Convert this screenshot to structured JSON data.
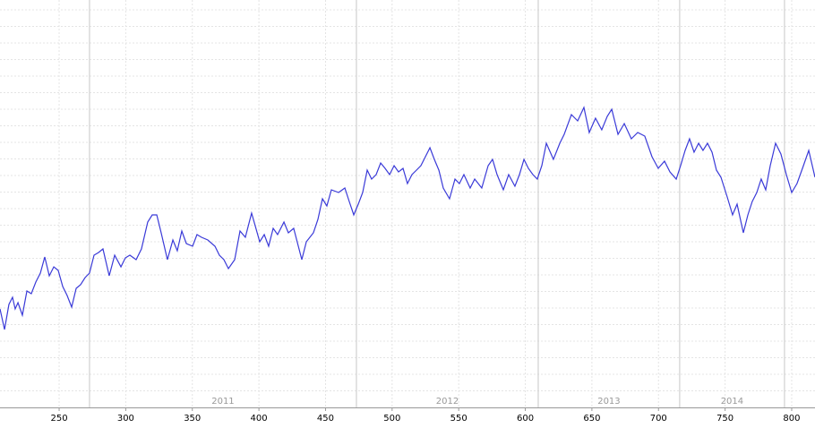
{
  "chart_data": {
    "type": "line",
    "x": [
      205.6,
      209.0,
      212.3,
      215.0,
      217.0,
      219.1,
      222.4,
      225.8,
      229.1,
      232.5,
      235.9,
      239.2,
      242.6,
      246.0,
      249.3,
      252.7,
      256.0,
      259.4,
      262.8,
      266.1,
      269.5,
      272.8,
      276.2,
      279.6,
      282.9,
      287.6,
      291.7,
      296.4,
      299.7,
      303.1,
      307.8,
      311.8,
      316.5,
      319.9,
      323.3,
      326.6,
      331.3,
      335.4,
      338.7,
      342.1,
      345.5,
      350.2,
      353.5,
      356.9,
      361.6,
      367.0,
      370.3,
      373.7,
      377.1,
      381.8,
      385.8,
      389.8,
      394.5,
      400.6,
      404.0,
      407.3,
      410.7,
      414.0,
      418.8,
      422.1,
      426.1,
      432.2,
      435.6,
      440.9,
      444.3,
      447.7,
      451.0,
      454.4,
      459.8,
      464.5,
      467.8,
      471.2,
      474.6,
      477.9,
      481.3,
      484.6,
      488.0,
      491.4,
      494.7,
      498.1,
      501.5,
      504.8,
      508.2,
      511.5,
      514.9,
      518.3,
      521.6,
      525.0,
      528.4,
      531.7,
      535.1,
      538.4,
      543.1,
      547.2,
      550.5,
      553.9,
      558.6,
      562.0,
      567.3,
      572.1,
      575.4,
      578.8,
      583.5,
      587.5,
      592.2,
      595.6,
      599.0,
      602.3,
      605.7,
      609.0,
      612.4,
      615.8,
      621.1,
      625.9,
      629.2,
      634.6,
      639.3,
      644.0,
      648.0,
      652.7,
      657.4,
      661.5,
      664.9,
      669.6,
      674.3,
      679.6,
      684.4,
      689.7,
      695.1,
      699.8,
      704.5,
      708.6,
      713.3,
      716.6,
      720.0,
      723.3,
      726.7,
      730.1,
      733.4,
      736.8,
      740.2,
      743.5,
      746.9,
      751.6,
      755.6,
      759.0,
      763.7,
      767.1,
      770.4,
      773.8,
      777.1,
      780.5,
      783.9,
      787.9,
      791.9,
      796.0,
      800.0,
      804.0,
      808.1,
      812.8,
      817.5
    ],
    "series": [
      {
        "color": "#3a3ad8",
        "values": [
          110,
          87,
          115,
          123,
          110,
          117,
          103,
          130,
          127,
          140,
          150,
          168,
          147,
          157,
          153,
          135,
          125,
          112,
          133,
          137,
          145,
          150,
          170,
          173,
          177,
          147,
          170,
          157,
          167,
          170,
          165,
          177,
          207,
          215,
          215,
          195,
          165,
          187,
          175,
          197,
          183,
          180,
          193,
          190,
          187,
          180,
          170,
          165,
          155,
          165,
          197,
          190,
          217,
          185,
          193,
          180,
          200,
          193,
          207,
          195,
          200,
          165,
          185,
          195,
          210,
          233,
          225,
          243,
          240,
          245,
          230,
          215,
          227,
          240,
          265,
          255,
          260,
          273,
          267,
          260,
          270,
          263,
          267,
          250,
          260,
          265,
          270,
          280,
          290,
          277,
          265,
          245,
          233,
          255,
          250,
          260,
          245,
          255,
          245,
          270,
          277,
          260,
          243,
          260,
          247,
          260,
          277,
          267,
          260,
          255,
          270,
          295,
          277,
          295,
          305,
          327,
          320,
          335,
          307,
          323,
          310,
          325,
          333,
          305,
          317,
          300,
          307,
          303,
          280,
          267,
          275,
          263,
          255,
          270,
          287,
          300,
          285,
          295,
          287,
          295,
          285,
          265,
          257,
          235,
          215,
          227,
          195,
          215,
          230,
          240,
          255,
          243,
          270,
          295,
          283,
          260,
          240,
          250,
          267,
          287,
          257
        ]
      }
    ],
    "xlim": [
      205.6,
      817.5
    ],
    "ylim": [
      0,
      455
    ],
    "xticks": [
      250,
      300,
      350,
      400,
      450,
      500,
      550,
      600,
      650,
      700,
      750,
      800
    ],
    "periods": [
      {
        "label": "2011",
        "start": 272.8,
        "end": 473.2
      },
      {
        "label": "2012",
        "start": 473.2,
        "end": 609.7
      },
      {
        "label": "2013",
        "start": 609.7,
        "end": 715.9
      },
      {
        "label": "2014",
        "start": 715.9,
        "end": 794.6
      }
    ],
    "grid": true
  }
}
